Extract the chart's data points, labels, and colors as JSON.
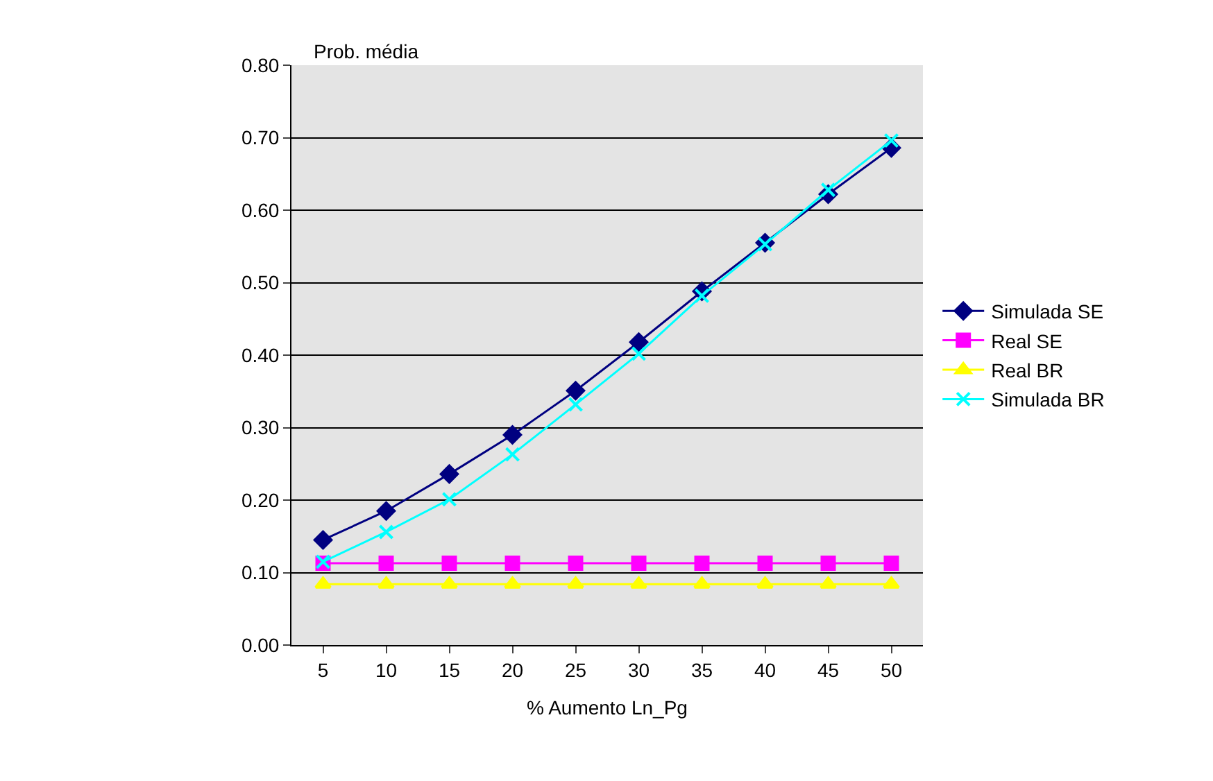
{
  "chart_data": {
    "type": "line",
    "ylabel": "Prob. média",
    "xlabel": "% Aumento Ln_Pg",
    "categories": [
      "5",
      "10",
      "15",
      "20",
      "25",
      "30",
      "35",
      "40",
      "45",
      "50"
    ],
    "series": [
      {
        "name": "Simulada SE",
        "color": "#000080",
        "marker": "diamond",
        "values": [
          0.145,
          0.185,
          0.236,
          0.29,
          0.351,
          0.418,
          0.488,
          0.555,
          0.622,
          0.686
        ]
      },
      {
        "name": "Real SE",
        "color": "#ff00ff",
        "marker": "square",
        "values": [
          0.113,
          0.113,
          0.113,
          0.113,
          0.113,
          0.113,
          0.113,
          0.113,
          0.113,
          0.113
        ]
      },
      {
        "name": "Real BR",
        "color": "#ffff00",
        "marker": "triangle",
        "values": [
          0.084,
          0.084,
          0.084,
          0.084,
          0.084,
          0.084,
          0.084,
          0.084,
          0.084,
          0.084
        ]
      },
      {
        "name": "Simulada BR",
        "color": "#00ffff",
        "marker": "cross",
        "values": [
          0.115,
          0.156,
          0.201,
          0.263,
          0.332,
          0.402,
          0.482,
          0.553,
          0.628,
          0.696
        ]
      }
    ],
    "ylim": [
      0,
      0.8
    ],
    "yticks": [
      {
        "value": 0,
        "label": "0.00"
      },
      {
        "value": 0.1,
        "label": "0.10"
      },
      {
        "value": 0.2,
        "label": "0.20"
      },
      {
        "value": 0.3,
        "label": "0.30"
      },
      {
        "value": 0.4,
        "label": "0.40"
      },
      {
        "value": 0.5,
        "label": "0.50"
      },
      {
        "value": 0.6,
        "label": "0.60"
      },
      {
        "value": 0.7,
        "label": "0.70"
      },
      {
        "value": 0.8,
        "label": "0.80"
      }
    ],
    "grid": "y",
    "legend": "right"
  }
}
